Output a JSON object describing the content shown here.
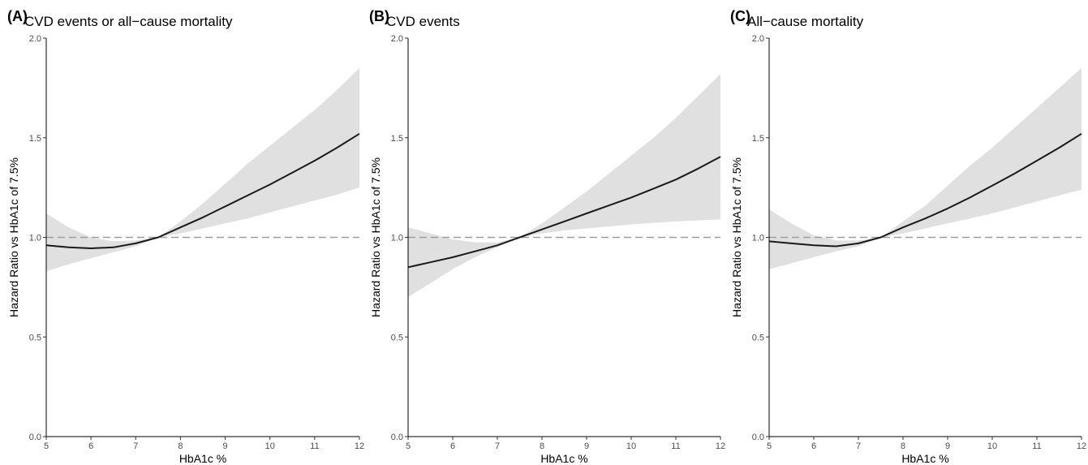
{
  "chart_data": [
    {
      "type": "line",
      "panel_label": "(A)",
      "title": "CVD events or all−cause mortality",
      "xlabel": "HbA1c %",
      "ylabel": "Hazard Ratio vs HbA1c of 7.5%",
      "xlim": [
        5,
        12
      ],
      "ylim": [
        0,
        2
      ],
      "x_ticks": [
        "5",
        "6",
        "7",
        "8",
        "9",
        "10",
        "11",
        "12"
      ],
      "y_ticks": [
        "0.0",
        "0.5",
        "1.0",
        "1.5",
        "2.0"
      ],
      "reference_line": 1.0,
      "x": [
        5,
        5.5,
        6,
        6.5,
        7,
        7.5,
        8,
        8.5,
        9,
        9.5,
        10,
        10.5,
        11,
        11.5,
        12
      ],
      "hr": [
        0.96,
        0.95,
        0.945,
        0.95,
        0.97,
        1.0,
        1.05,
        1.1,
        1.155,
        1.21,
        1.265,
        1.325,
        1.385,
        1.45,
        1.52
      ],
      "lower": [
        0.83,
        0.865,
        0.895,
        0.925,
        0.955,
        1.0,
        1.02,
        1.045,
        1.07,
        1.095,
        1.125,
        1.155,
        1.185,
        1.215,
        1.25
      ],
      "upper": [
        1.12,
        1.05,
        1.0,
        0.98,
        0.985,
        1.0,
        1.08,
        1.17,
        1.27,
        1.37,
        1.46,
        1.55,
        1.64,
        1.74,
        1.85
      ],
      "band_color": "#e0e0e0",
      "line_color": "#1a1a1a"
    },
    {
      "type": "line",
      "panel_label": "(B)",
      "title": "CVD events",
      "xlabel": "HbA1c %",
      "ylabel": "Hazard Ratio vs HbA1c of 7.5%",
      "xlim": [
        5,
        12
      ],
      "ylim": [
        0,
        2
      ],
      "x_ticks": [
        "5",
        "6",
        "7",
        "8",
        "9",
        "10",
        "11",
        "12"
      ],
      "y_ticks": [
        "0.0",
        "0.5",
        "1.0",
        "1.5",
        "2.0"
      ],
      "reference_line": 1.0,
      "x": [
        5,
        5.5,
        6,
        6.5,
        7,
        7.5,
        8,
        8.5,
        9,
        9.5,
        10,
        10.5,
        11,
        11.5,
        12
      ],
      "hr": [
        0.85,
        0.875,
        0.9,
        0.93,
        0.96,
        1.0,
        1.04,
        1.08,
        1.12,
        1.16,
        1.2,
        1.245,
        1.29,
        1.345,
        1.405
      ],
      "lower": [
        0.7,
        0.77,
        0.84,
        0.9,
        0.95,
        1.0,
        1.02,
        1.035,
        1.045,
        1.055,
        1.065,
        1.073,
        1.08,
        1.085,
        1.09
      ],
      "upper": [
        1.05,
        1.02,
        0.99,
        0.975,
        0.975,
        1.0,
        1.07,
        1.15,
        1.23,
        1.32,
        1.41,
        1.5,
        1.6,
        1.71,
        1.82
      ],
      "band_color": "#e0e0e0",
      "line_color": "#1a1a1a"
    },
    {
      "type": "line",
      "panel_label": "(C)",
      "title": "All−cause mortality",
      "xlabel": "HbA1c %",
      "ylabel": "Hazard Ratio vs HbA1c of 7.5%",
      "xlim": [
        5,
        12
      ],
      "ylim": [
        0,
        2
      ],
      "x_ticks": [
        "5",
        "6",
        "7",
        "8",
        "9",
        "10",
        "11",
        "12"
      ],
      "y_ticks": [
        "0.0",
        "0.5",
        "1.0",
        "1.5",
        "2.0"
      ],
      "reference_line": 1.0,
      "x": [
        5,
        5.5,
        6,
        6.5,
        7,
        7.5,
        8,
        8.5,
        9,
        9.5,
        10,
        10.5,
        11,
        11.5,
        12
      ],
      "hr": [
        0.98,
        0.97,
        0.96,
        0.955,
        0.97,
        1.0,
        1.05,
        1.095,
        1.145,
        1.2,
        1.26,
        1.32,
        1.385,
        1.45,
        1.52
      ],
      "lower": [
        0.84,
        0.87,
        0.9,
        0.93,
        0.955,
        1.0,
        1.02,
        1.045,
        1.07,
        1.095,
        1.12,
        1.15,
        1.18,
        1.21,
        1.24
      ],
      "upper": [
        1.14,
        1.07,
        1.01,
        0.985,
        0.985,
        1.0,
        1.08,
        1.16,
        1.26,
        1.36,
        1.45,
        1.55,
        1.65,
        1.75,
        1.85
      ],
      "band_color": "#e0e0e0",
      "line_color": "#1a1a1a"
    }
  ]
}
